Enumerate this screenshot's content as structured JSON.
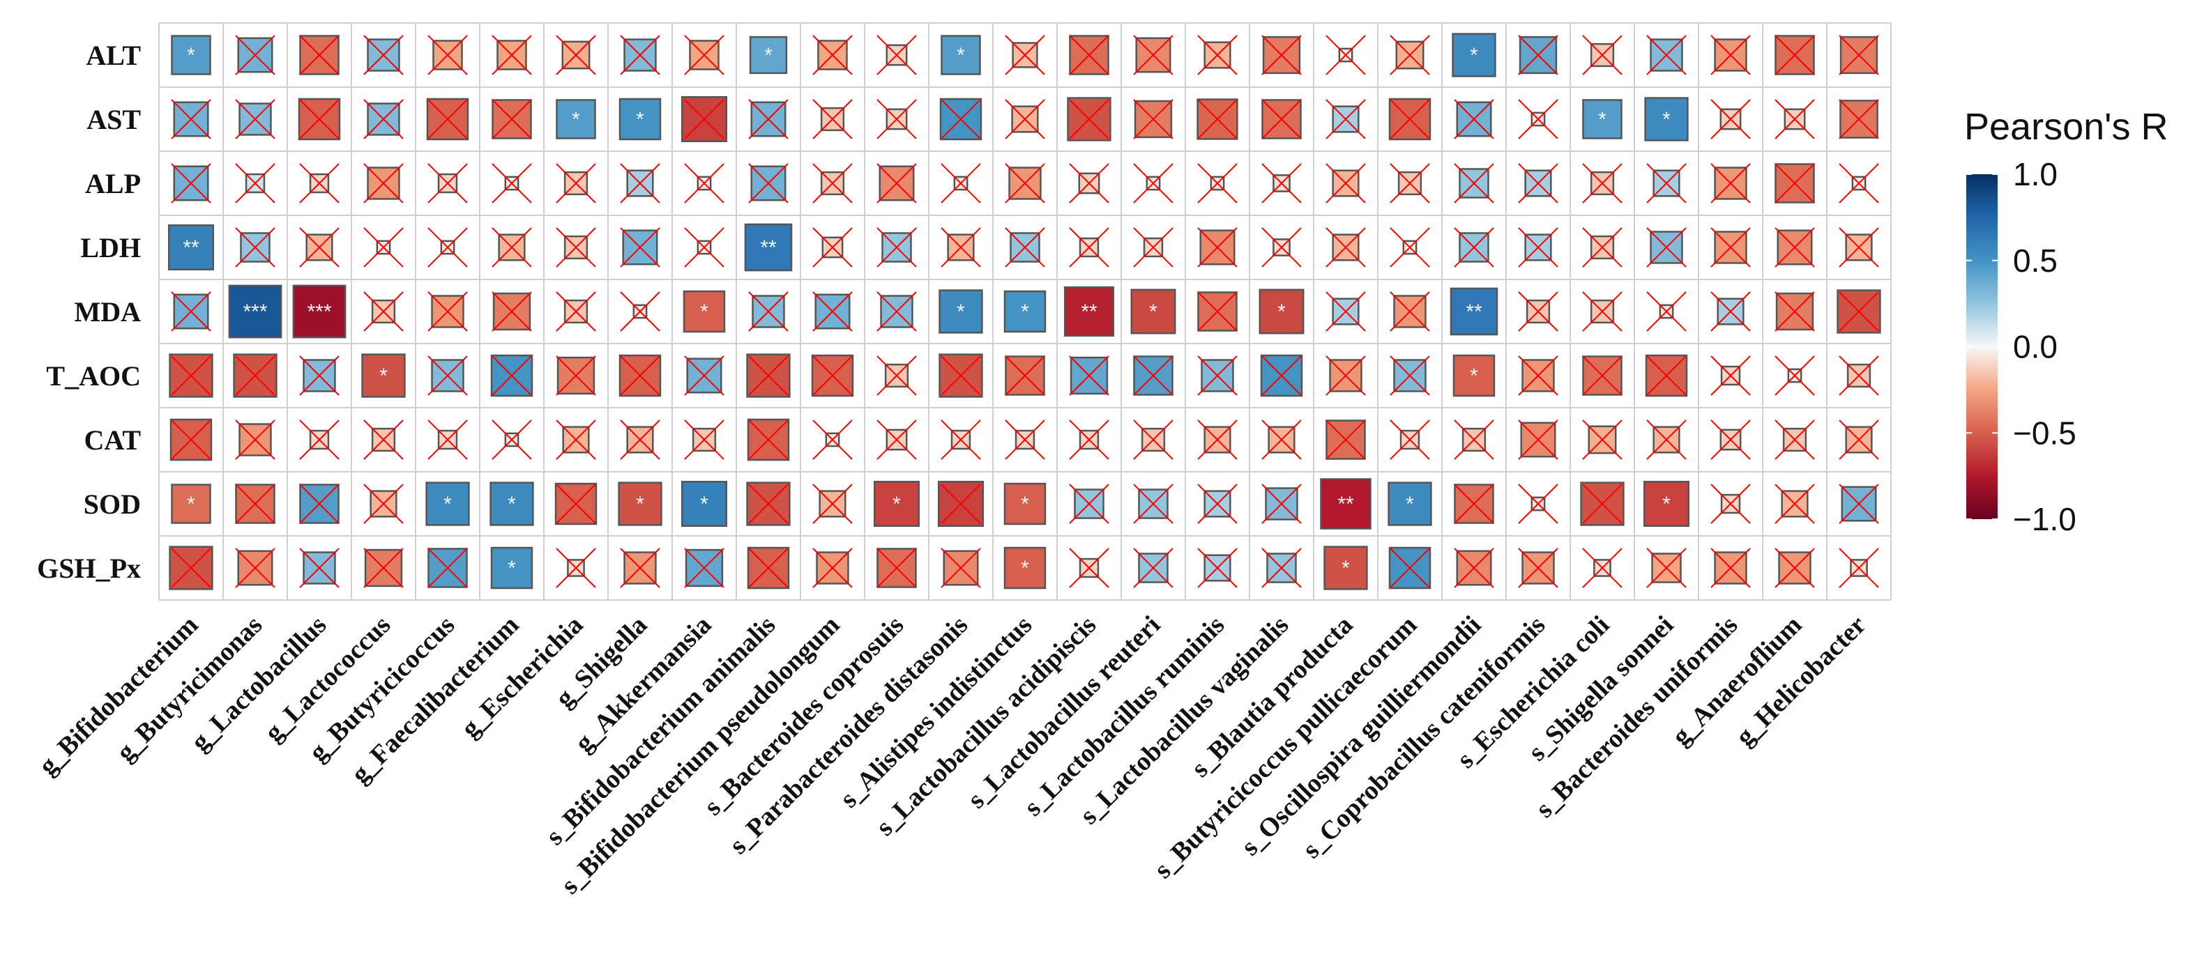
{
  "chart_data": {
    "type": "heatmap",
    "title": "",
    "legend": {
      "title": "Pearson's R",
      "ticks": [
        "1.0",
        "0.5",
        "0.0",
        "−0.5",
        "−1.0"
      ],
      "tick_values": [
        1.0,
        0.5,
        0.0,
        -0.5,
        -1.0
      ],
      "range": [
        -1,
        1
      ],
      "placement": "right"
    },
    "rows": [
      "ALT",
      "AST",
      "ALP",
      "LDH",
      "MDA",
      "T_AOC",
      "CAT",
      "SOD",
      "GSH_Px"
    ],
    "columns": [
      "g_Bifidobacterium",
      "g_Butyricimonas",
      "g_Lactobacillus",
      "g_Lactococcus",
      "g_Butyricicoccus",
      "g_Faecalibacterium",
      "g_Escherichia",
      "g_Shigella",
      "g_Akkermansia",
      "s_Bifidobacterium animalis",
      "s_Bifidobacterium pseudolongum",
      "s_Bacteroides coprosuis",
      "s_Parabacteroides distasonis",
      "s_Alistipes indistinctus",
      "s_Lactobacillus acidipiscis",
      "s_Lactobacillus reuteri",
      "s_Lactobacillus ruminis",
      "s_Lactobacillus vaginalis",
      "s_Blautia producta",
      "s_Butyricicoccus pullicaecorum",
      "s_Oscillospira guilliermondii",
      "s_Coprobacillus cateniformis",
      "s_Escherichia coli",
      "s_Shigella sonnei",
      "s_Bacteroides uniformis",
      "g_Anaeroflium",
      "g_Helicobacter"
    ],
    "values": [
      [
        0.45,
        0.35,
        -0.45,
        0.3,
        -0.25,
        -0.25,
        -0.22,
        0.3,
        -0.25,
        0.4,
        -0.25,
        -0.12,
        0.45,
        -0.18,
        -0.45,
        -0.35,
        -0.2,
        -0.4,
        -0.05,
        -0.22,
        0.55,
        0.4,
        -0.15,
        0.3,
        -0.3,
        -0.45,
        -0.4
      ],
      [
        0.35,
        0.3,
        -0.5,
        0.3,
        -0.5,
        -0.45,
        0.45,
        0.5,
        -0.6,
        0.35,
        -0.15,
        -0.12,
        0.5,
        -0.2,
        -0.55,
        -0.4,
        -0.48,
        -0.45,
        0.2,
        -0.5,
        0.35,
        -0.05,
        0.45,
        0.55,
        -0.12,
        -0.12,
        -0.42
      ],
      [
        0.35,
        0.1,
        -0.1,
        -0.3,
        -0.1,
        -0.05,
        -0.15,
        0.2,
        -0.05,
        0.35,
        -0.15,
        -0.35,
        -0.05,
        -0.3,
        -0.12,
        -0.05,
        -0.05,
        -0.08,
        -0.2,
        -0.15,
        0.25,
        0.2,
        -0.15,
        0.2,
        -0.3,
        -0.45,
        -0.05
      ],
      [
        0.6,
        0.25,
        -0.2,
        -0.05,
        -0.05,
        -0.2,
        -0.15,
        0.35,
        -0.05,
        0.65,
        -0.12,
        0.25,
        -0.2,
        0.25,
        -0.1,
        -0.1,
        -0.35,
        -0.08,
        -0.2,
        -0.05,
        0.25,
        0.2,
        -0.15,
        0.3,
        -0.3,
        -0.35,
        -0.2
      ],
      [
        0.35,
        0.82,
        -0.82,
        -0.15,
        -0.3,
        -0.4,
        -0.15,
        -0.05,
        -0.5,
        0.3,
        0.35,
        0.3,
        0.55,
        0.5,
        -0.72,
        -0.58,
        -0.45,
        -0.58,
        0.2,
        -0.3,
        0.65,
        -0.15,
        -0.15,
        -0.05,
        0.2,
        -0.4,
        -0.55
      ],
      [
        -0.55,
        -0.55,
        0.3,
        -0.55,
        0.3,
        0.5,
        -0.4,
        -0.5,
        0.35,
        -0.55,
        -0.5,
        -0.15,
        -0.55,
        -0.45,
        0.4,
        0.45,
        0.3,
        0.5,
        -0.3,
        0.3,
        -0.5,
        -0.3,
        -0.45,
        -0.5,
        -0.1,
        -0.05,
        -0.15
      ],
      [
        -0.5,
        -0.3,
        -0.1,
        -0.15,
        -0.1,
        -0.05,
        -0.2,
        -0.2,
        -0.15,
        -0.5,
        -0.05,
        -0.12,
        -0.1,
        -0.1,
        -0.1,
        -0.15,
        -0.2,
        -0.2,
        -0.45,
        -0.1,
        -0.15,
        -0.35,
        -0.22,
        -0.2,
        -0.12,
        -0.15,
        -0.2
      ],
      [
        -0.45,
        -0.45,
        0.45,
        -0.2,
        0.55,
        0.55,
        -0.5,
        -0.55,
        0.6,
        -0.55,
        -0.2,
        -0.6,
        -0.6,
        -0.5,
        0.25,
        0.25,
        0.2,
        0.3,
        -0.75,
        0.55,
        -0.45,
        -0.05,
        -0.55,
        -0.6,
        -0.1,
        -0.2,
        0.35
      ],
      [
        -0.55,
        -0.35,
        0.3,
        -0.4,
        0.45,
        0.5,
        -0.08,
        -0.3,
        0.4,
        -0.5,
        -0.3,
        -0.45,
        -0.35,
        -0.5,
        -0.1,
        0.25,
        0.2,
        0.25,
        -0.55,
        0.5,
        -0.35,
        -0.3,
        -0.08,
        -0.25,
        -0.3,
        -0.3,
        -0.08
      ]
    ],
    "significance": [
      [
        "*",
        "",
        "",
        "",
        "",
        "",
        "",
        "",
        "",
        "*",
        "",
        "",
        "*",
        "",
        "",
        "",
        "",
        "",
        "",
        "",
        "*",
        "",
        "",
        "",
        "",
        "",
        ""
      ],
      [
        "",
        "",
        "",
        "",
        "",
        "",
        "*",
        "*",
        "",
        "",
        "",
        "",
        "",
        "",
        "",
        "",
        "",
        "",
        "",
        "",
        "",
        "",
        "*",
        "*",
        "",
        "",
        ""
      ],
      [
        "",
        "",
        "",
        "",
        "",
        "",
        "",
        "",
        "",
        "",
        "",
        "",
        "",
        "",
        "",
        "",
        "",
        "",
        "",
        "",
        "",
        "",
        "",
        "",
        "",
        "",
        ""
      ],
      [
        "**",
        "",
        "",
        "",
        "",
        "",
        "",
        "",
        "",
        "**",
        "",
        "",
        "",
        "",
        "",
        "",
        "",
        "",
        "",
        "",
        "",
        "",
        "",
        "",
        "",
        "",
        ""
      ],
      [
        "",
        "***",
        "***",
        "",
        "",
        "",
        "",
        "",
        "*",
        "",
        "",
        "",
        "*",
        "*",
        "**",
        "*",
        "",
        "*",
        "",
        "",
        "**",
        "",
        "",
        "",
        "",
        "",
        ""
      ],
      [
        "",
        "",
        "",
        "*",
        "",
        "",
        "",
        "",
        "",
        "",
        "",
        "",
        "",
        "",
        "",
        "",
        "",
        "",
        "",
        "",
        "*",
        "",
        "",
        "",
        "",
        "",
        ""
      ],
      [
        "",
        "",
        "",
        "",
        "",
        "",
        "",
        "",
        "",
        "",
        "",
        "",
        "",
        "",
        "",
        "",
        "",
        "",
        "",
        "",
        "",
        "",
        "",
        "",
        "",
        "",
        ""
      ],
      [
        "*",
        "",
        "",
        "",
        "*",
        "*",
        "",
        "*",
        "*",
        "",
        "",
        "*",
        "",
        "*",
        "",
        "",
        "",
        "",
        "**",
        "*",
        "",
        "",
        "",
        "*",
        "",
        "",
        ""
      ],
      [
        "",
        "",
        "",
        "",
        "",
        "*",
        "",
        "",
        "",
        "",
        "",
        "",
        "",
        "*",
        "",
        "",
        "",
        "",
        "*",
        "",
        "",
        "",
        "",
        "",
        "",
        "",
        ""
      ]
    ],
    "colors": {
      "negative": "#67001f",
      "neutral": "#f7f7f7",
      "positive": "#053061",
      "cross": "#ff0000"
    }
  }
}
